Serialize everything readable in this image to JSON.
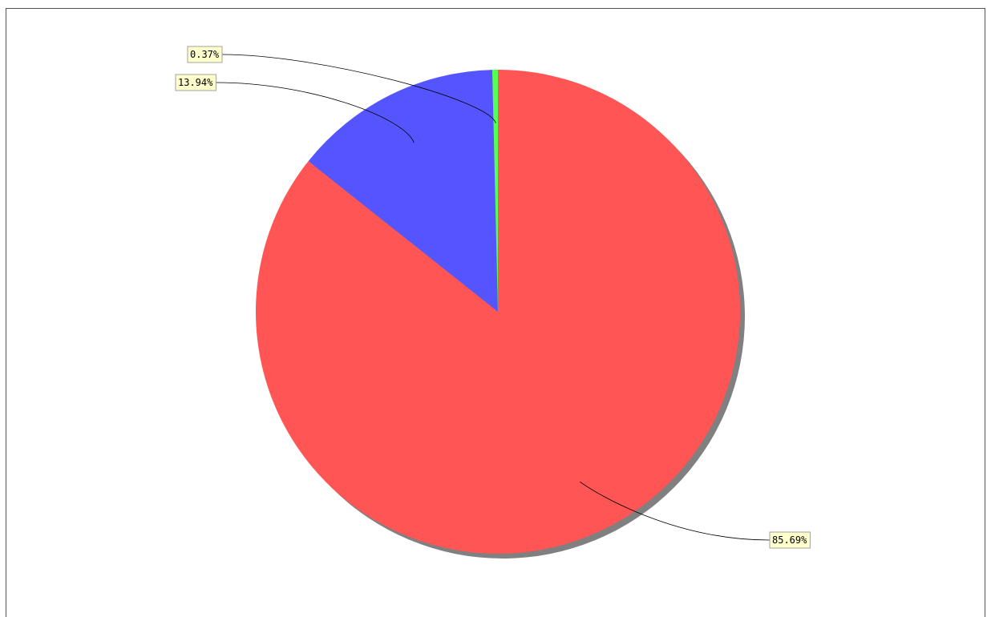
{
  "chart_data": {
    "type": "pie",
    "title": "",
    "slices": [
      {
        "label": "85.69%",
        "value": 85.69,
        "color": "#ff5555"
      },
      {
        "label": "13.94%",
        "value": 13.94,
        "color": "#5555ff"
      },
      {
        "label": "0.37%",
        "value": 0.37,
        "color": "#55ff55"
      }
    ],
    "shadow": true,
    "legend": "none",
    "start_angle": "12 o'clock",
    "direction": "clockwise"
  }
}
